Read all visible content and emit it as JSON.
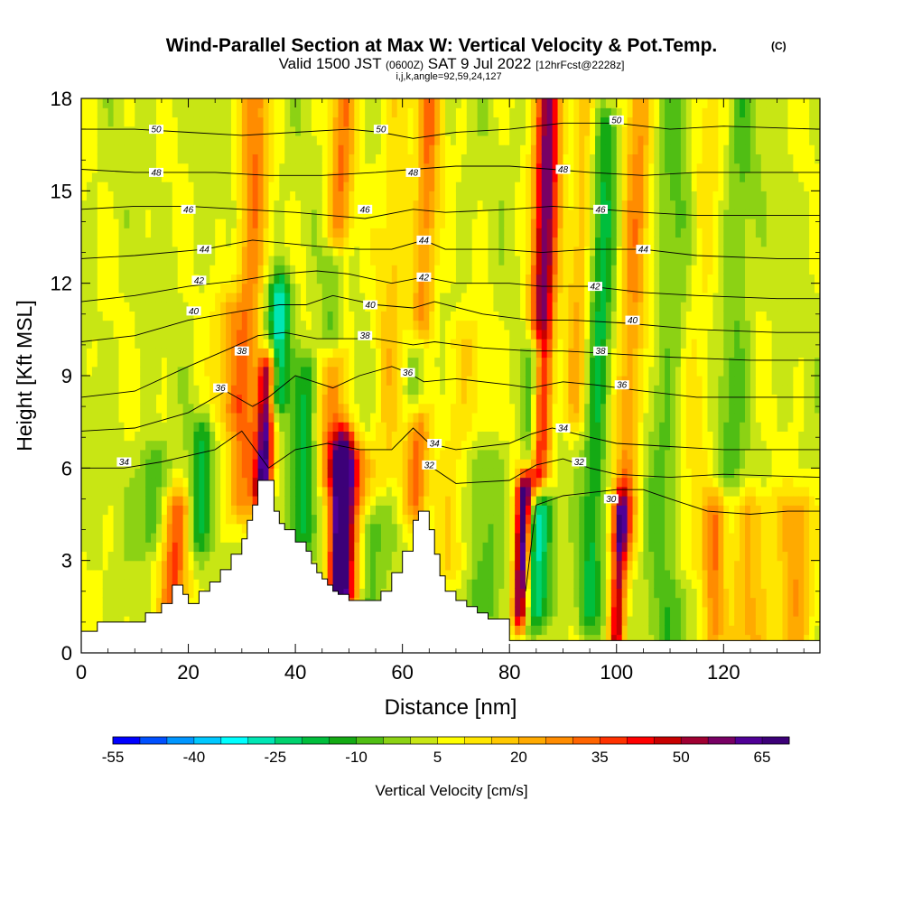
{
  "header": {
    "title": "Wind-Parallel Section at Max W: Vertical Velocity & Pot.Temp.",
    "title_mark": "(C)",
    "valid_prefix": "Valid 1500 JST",
    "valid_tz": "(0600Z)",
    "valid_date": "SAT 9 Jul 2022",
    "valid_fcst": "[12hrFcst@2228z]",
    "indices": "i,j,k,angle=92,59,24,127"
  },
  "chart_data": {
    "type": "heatmap",
    "xlabel": "Distance [nm]",
    "ylabel": "Height [Kft MSL]",
    "xlim": [
      0,
      138
    ],
    "ylim": [
      0,
      18
    ],
    "x_ticks": [
      "0",
      "20",
      "40",
      "60",
      "80",
      "100",
      "120"
    ],
    "y_ticks": [
      "0",
      "3",
      "6",
      "9",
      "12",
      "15",
      "18"
    ],
    "colorbar": {
      "label": "Vertical Velocity [cm/s]",
      "tick_labels": [
        "-55",
        "-40",
        "-25",
        "-10",
        "5",
        "20",
        "35",
        "50",
        "65"
      ],
      "colors": [
        "#0000ff",
        "#0050ff",
        "#0096ff",
        "#00c8ff",
        "#00ffff",
        "#00e6b4",
        "#00d26e",
        "#00be3c",
        "#14aa14",
        "#50be14",
        "#8cd214",
        "#c8e614",
        "#ffff00",
        "#ffe600",
        "#ffc800",
        "#ffaa00",
        "#ff8c00",
        "#ff6400",
        "#ff3200",
        "#ff0000",
        "#c80000",
        "#a00032",
        "#780064",
        "#500096",
        "#3c0078"
      ]
    },
    "terrain": {
      "x": [
        0,
        3,
        3,
        12,
        12,
        15,
        17,
        19,
        20,
        22,
        24,
        26,
        28,
        30,
        31,
        32,
        33,
        36,
        36,
        37,
        38,
        39,
        40,
        42,
        43,
        44,
        45,
        46,
        47,
        48,
        50,
        52,
        56,
        56,
        58,
        60,
        62,
        63,
        64,
        65,
        66,
        67,
        68,
        70,
        72,
        74,
        76,
        80,
        80,
        138
      ],
      "y": [
        0.7,
        0.7,
        1.0,
        1.0,
        1.3,
        1.6,
        2.2,
        1.9,
        1.6,
        2.0,
        2.3,
        2.7,
        3.2,
        3.7,
        4.3,
        4.8,
        5.6,
        5.6,
        4.6,
        4.2,
        4.0,
        4.0,
        3.6,
        3.3,
        2.9,
        2.6,
        2.4,
        2.2,
        2.0,
        1.9,
        1.7,
        1.7,
        1.7,
        2.0,
        2.6,
        3.3,
        4.3,
        4.6,
        4.6,
        4.0,
        3.2,
        2.5,
        2.0,
        1.7,
        1.5,
        1.3,
        1.1,
        1.0,
        0.4,
        0.4
      ]
    },
    "updrafts": [
      {
        "x": 34.0,
        "w": 1.2,
        "z0": 5.5,
        "z1": 9.0,
        "amp": 62
      },
      {
        "x": 30.0,
        "w": 1.8,
        "z0": 5.0,
        "z1": 18.0,
        "amp": 25
      },
      {
        "x": 48.0,
        "w": 1.3,
        "z0": 2.0,
        "z1": 6.5,
        "amp": 58
      },
      {
        "x": 46.5,
        "w": 1.6,
        "z0": 6.0,
        "z1": 18.0,
        "amp": 25
      },
      {
        "x": 82.0,
        "w": 1.0,
        "z0": 1.5,
        "z1": 5.0,
        "amp": 65
      },
      {
        "x": 85.0,
        "w": 1.6,
        "z0": 6.0,
        "z1": 18.0,
        "amp": 55
      },
      {
        "x": 62.5,
        "w": 1.5,
        "z0": 5.0,
        "z1": 18.0,
        "amp": 25
      },
      {
        "x": 50.0,
        "w": 2.0,
        "z0": 2.0,
        "z1": 6.0,
        "amp": 35
      },
      {
        "x": 17.0,
        "w": 1.8,
        "z0": 1.5,
        "z1": 4.5,
        "amp": 30
      },
      {
        "x": 100.0,
        "w": 1.0,
        "z0": 0.5,
        "z1": 4.5,
        "amp": 45
      },
      {
        "x": 101.5,
        "w": 1.8,
        "z0": 4.0,
        "z1": 18.0,
        "amp": 22
      },
      {
        "x": 118.0,
        "w": 1.5,
        "z0": 0.5,
        "z1": 4.5,
        "amp": 25
      },
      {
        "x": 124.0,
        "w": 3.5,
        "z0": 0.5,
        "z1": 4.5,
        "amp": 18
      },
      {
        "x": 133.0,
        "w": 2.0,
        "z0": 0.5,
        "z1": 4.5,
        "amp": 20
      },
      {
        "x": 57.0,
        "w": 2.0,
        "z0": 6.0,
        "z1": 18.0,
        "amp": 12
      },
      {
        "x": 113.0,
        "w": 2.5,
        "z0": 3.0,
        "z1": 18.0,
        "amp": 12
      },
      {
        "x": 92.0,
        "w": 1.5,
        "z0": 8.0,
        "z1": 18.0,
        "amp": 15
      },
      {
        "x": 27.0,
        "w": 2.0,
        "z0": 8.0,
        "z1": 11.0,
        "amp": 15
      },
      {
        "x": 70.0,
        "w": 3.0,
        "z0": 3.0,
        "z1": 10.0,
        "amp": 10
      }
    ],
    "downdrafts": [
      {
        "x": 36.5,
        "w": 1.5,
        "z0": 8.5,
        "z1": 11.5,
        "amp": -35
      },
      {
        "x": 47.0,
        "w": 1.5,
        "z0": 10.5,
        "z1": 12.5,
        "amp": -30
      },
      {
        "x": 63.0,
        "w": 1.5,
        "z0": 8.5,
        "z1": 9.5,
        "amp": -30
      },
      {
        "x": 84.0,
        "w": 1.2,
        "z0": 6.5,
        "z1": 9.5,
        "amp": -45
      },
      {
        "x": 85.0,
        "w": 1.8,
        "z0": 1.5,
        "z1": 4.5,
        "amp": -30
      },
      {
        "x": 95.0,
        "w": 1.5,
        "z0": 1.5,
        "z1": 17.0,
        "amp": -20
      },
      {
        "x": 41.0,
        "w": 1.5,
        "z0": 4.0,
        "z1": 9.0,
        "amp": -20
      },
      {
        "x": 22.0,
        "w": 1.5,
        "z0": 4.0,
        "z1": 7.0,
        "amp": -18
      },
      {
        "x": 13.0,
        "w": 2.0,
        "z0": 4.0,
        "z1": 6.0,
        "amp": -15
      },
      {
        "x": 53.0,
        "w": 2.0,
        "z0": 1.5,
        "z1": 4.0,
        "amp": -18
      },
      {
        "x": 109.0,
        "w": 3.0,
        "z0": 0.5,
        "z1": 18.0,
        "amp": -12
      },
      {
        "x": 120.0,
        "w": 2.0,
        "z0": 0.5,
        "z1": 18.0,
        "amp": -10
      },
      {
        "x": 74.0,
        "w": 2.5,
        "z0": 1.0,
        "z1": 6.0,
        "amp": -12
      }
    ],
    "theta_contours": [
      {
        "label": "30",
        "pts": [
          [
            83,
            2.0
          ],
          [
            85,
            4.8
          ],
          [
            90,
            5.1
          ],
          [
            100,
            5.3
          ],
          [
            105,
            5.3
          ],
          [
            110,
            5.0
          ],
          [
            117,
            4.6
          ],
          [
            125,
            4.5
          ],
          [
            132,
            4.6
          ],
          [
            138,
            4.6
          ]
        ]
      },
      {
        "label": "32",
        "pts": [
          [
            64,
            6.2
          ],
          [
            70,
            5.5
          ],
          [
            80,
            5.6
          ],
          [
            85,
            6.1
          ],
          [
            90,
            6.3
          ],
          [
            95,
            6.0
          ],
          [
            100,
            5.8
          ],
          [
            110,
            5.7
          ],
          [
            120,
            5.8
          ],
          [
            138,
            5.7
          ]
        ]
      },
      {
        "label": "34",
        "pts": [
          [
            0,
            6.0
          ],
          [
            8,
            6.0
          ],
          [
            15,
            6.2
          ],
          [
            25,
            6.6
          ],
          [
            30,
            7.2
          ],
          [
            35,
            6.0
          ],
          [
            40,
            6.6
          ],
          [
            46,
            6.8
          ],
          [
            52,
            6.6
          ],
          [
            58,
            6.6
          ],
          [
            62,
            7.3
          ],
          [
            65,
            6.8
          ],
          [
            70,
            6.6
          ],
          [
            80,
            6.8
          ],
          [
            84,
            7.1
          ],
          [
            88,
            7.3
          ],
          [
            95,
            7.0
          ],
          [
            100,
            6.8
          ],
          [
            110,
            6.7
          ],
          [
            120,
            6.6
          ],
          [
            130,
            6.6
          ],
          [
            138,
            6.6
          ]
        ]
      },
      {
        "label": "36",
        "pts": [
          [
            0,
            7.2
          ],
          [
            10,
            7.3
          ],
          [
            20,
            7.8
          ],
          [
            27,
            8.5
          ],
          [
            32,
            8.0
          ],
          [
            35,
            8.3
          ],
          [
            40,
            9.0
          ],
          [
            47,
            8.6
          ],
          [
            52,
            9.0
          ],
          [
            58,
            9.3
          ],
          [
            61,
            9.1
          ],
          [
            64,
            8.8
          ],
          [
            70,
            8.9
          ],
          [
            80,
            8.7
          ],
          [
            84,
            8.6
          ],
          [
            90,
            8.8
          ],
          [
            96,
            8.7
          ],
          [
            105,
            8.5
          ],
          [
            115,
            8.3
          ],
          [
            125,
            8.3
          ],
          [
            138,
            8.3
          ]
        ]
      },
      {
        "label": "38",
        "pts": [
          [
            0,
            8.3
          ],
          [
            10,
            8.5
          ],
          [
            20,
            9.3
          ],
          [
            28,
            9.9
          ],
          [
            33,
            10.3
          ],
          [
            38,
            10.4
          ],
          [
            44,
            10.2
          ],
          [
            48,
            10.2
          ],
          [
            55,
            10.2
          ],
          [
            62,
            10.0
          ],
          [
            66,
            10.1
          ],
          [
            75,
            9.9
          ],
          [
            84,
            9.8
          ],
          [
            90,
            9.8
          ],
          [
            100,
            9.7
          ],
          [
            110,
            9.6
          ],
          [
            125,
            9.5
          ],
          [
            138,
            9.5
          ]
        ]
      },
      {
        "label": "40",
        "pts": [
          [
            0,
            10.1
          ],
          [
            10,
            10.3
          ],
          [
            20,
            10.8
          ],
          [
            30,
            11.1
          ],
          [
            37,
            11.3
          ],
          [
            42,
            11.3
          ],
          [
            47,
            11.6
          ],
          [
            55,
            11.3
          ],
          [
            62,
            11.2
          ],
          [
            66,
            11.4
          ],
          [
            75,
            11.0
          ],
          [
            84,
            10.8
          ],
          [
            92,
            10.8
          ],
          [
            102,
            10.7
          ],
          [
            115,
            10.5
          ],
          [
            130,
            10.4
          ],
          [
            138,
            10.4
          ]
        ]
      },
      {
        "label": "42",
        "pts": [
          [
            0,
            11.4
          ],
          [
            10,
            11.6
          ],
          [
            20,
            11.9
          ],
          [
            30,
            12.1
          ],
          [
            37,
            12.3
          ],
          [
            44,
            12.4
          ],
          [
            50,
            12.3
          ],
          [
            58,
            12.0
          ],
          [
            64,
            12.2
          ],
          [
            70,
            12.0
          ],
          [
            80,
            12.0
          ],
          [
            86,
            11.9
          ],
          [
            95,
            11.9
          ],
          [
            105,
            11.7
          ],
          [
            115,
            11.6
          ],
          [
            130,
            11.5
          ],
          [
            138,
            11.5
          ]
        ]
      },
      {
        "label": "44",
        "pts": [
          [
            0,
            12.8
          ],
          [
            10,
            12.9
          ],
          [
            23,
            13.1
          ],
          [
            32,
            13.4
          ],
          [
            38,
            13.3
          ],
          [
            44,
            13.2
          ],
          [
            52,
            13.1
          ],
          [
            58,
            13.1
          ],
          [
            64,
            13.4
          ],
          [
            68,
            13.1
          ],
          [
            78,
            13.1
          ],
          [
            86,
            13.0
          ],
          [
            95,
            13.1
          ],
          [
            105,
            13.1
          ],
          [
            115,
            12.9
          ],
          [
            130,
            12.8
          ],
          [
            138,
            12.8
          ]
        ]
      },
      {
        "label": "46",
        "pts": [
          [
            0,
            14.4
          ],
          [
            10,
            14.5
          ],
          [
            20,
            14.5
          ],
          [
            30,
            14.4
          ],
          [
            40,
            14.3
          ],
          [
            53,
            14.1
          ],
          [
            62,
            14.4
          ],
          [
            68,
            14.3
          ],
          [
            80,
            14.4
          ],
          [
            88,
            14.5
          ],
          [
            97,
            14.4
          ],
          [
            105,
            14.3
          ],
          [
            115,
            14.2
          ],
          [
            125,
            14.2
          ],
          [
            138,
            14.2
          ]
        ]
      },
      {
        "label": "48",
        "pts": [
          [
            0,
            15.7
          ],
          [
            10,
            15.6
          ],
          [
            15,
            15.6
          ],
          [
            25,
            15.6
          ],
          [
            35,
            15.5
          ],
          [
            45,
            15.5
          ],
          [
            55,
            15.6
          ],
          [
            62,
            15.7
          ],
          [
            70,
            15.8
          ],
          [
            80,
            15.8
          ],
          [
            88,
            15.7
          ],
          [
            95,
            15.6
          ],
          [
            105,
            15.5
          ],
          [
            115,
            15.6
          ],
          [
            125,
            15.6
          ],
          [
            138,
            15.6
          ]
        ]
      },
      {
        "label": "50",
        "pts": [
          [
            0,
            17.0
          ],
          [
            10,
            17.0
          ],
          [
            20,
            16.9
          ],
          [
            30,
            16.8
          ],
          [
            40,
            16.9
          ],
          [
            50,
            17.0
          ],
          [
            56,
            16.9
          ],
          [
            62,
            16.7
          ],
          [
            70,
            16.9
          ],
          [
            80,
            17.0
          ],
          [
            90,
            17.2
          ],
          [
            100,
            17.2
          ],
          [
            110,
            17.0
          ],
          [
            120,
            17.1
          ],
          [
            138,
            17.0
          ]
        ]
      }
    ],
    "contour_labels": [
      {
        "label": "50",
        "x": 14,
        "y": 17.0
      },
      {
        "label": "48",
        "x": 14,
        "y": 15.6
      },
      {
        "label": "46",
        "x": 20,
        "y": 14.4
      },
      {
        "label": "44",
        "x": 23,
        "y": 13.1
      },
      {
        "label": "42",
        "x": 22,
        "y": 12.1
      },
      {
        "label": "40",
        "x": 21,
        "y": 11.1
      },
      {
        "label": "38",
        "x": 30,
        "y": 9.8
      },
      {
        "label": "36",
        "x": 26,
        "y": 8.6
      },
      {
        "label": "34",
        "x": 8,
        "y": 6.2
      },
      {
        "label": "50",
        "x": 56,
        "y": 17.0
      },
      {
        "label": "48",
        "x": 62,
        "y": 15.6
      },
      {
        "label": "46",
        "x": 53,
        "y": 14.4
      },
      {
        "label": "44",
        "x": 64,
        "y": 13.4
      },
      {
        "label": "42",
        "x": 64,
        "y": 12.2
      },
      {
        "label": "40",
        "x": 54,
        "y": 11.3
      },
      {
        "label": "38",
        "x": 53,
        "y": 10.3
      },
      {
        "label": "36",
        "x": 61,
        "y": 9.1
      },
      {
        "label": "34",
        "x": 66,
        "y": 6.8
      },
      {
        "label": "32",
        "x": 65,
        "y": 6.1
      },
      {
        "label": "50",
        "x": 100,
        "y": 17.3
      },
      {
        "label": "48",
        "x": 90,
        "y": 15.7
      },
      {
        "label": "46",
        "x": 97,
        "y": 14.4
      },
      {
        "label": "44",
        "x": 105,
        "y": 13.1
      },
      {
        "label": "42",
        "x": 96,
        "y": 11.9
      },
      {
        "label": "40",
        "x": 103,
        "y": 10.8
      },
      {
        "label": "38",
        "x": 97,
        "y": 9.8
      },
      {
        "label": "36",
        "x": 101,
        "y": 8.7
      },
      {
        "label": "34",
        "x": 90,
        "y": 7.3
      },
      {
        "label": "32",
        "x": 93,
        "y": 6.2
      },
      {
        "label": "30",
        "x": 99,
        "y": 5.0
      }
    ]
  }
}
